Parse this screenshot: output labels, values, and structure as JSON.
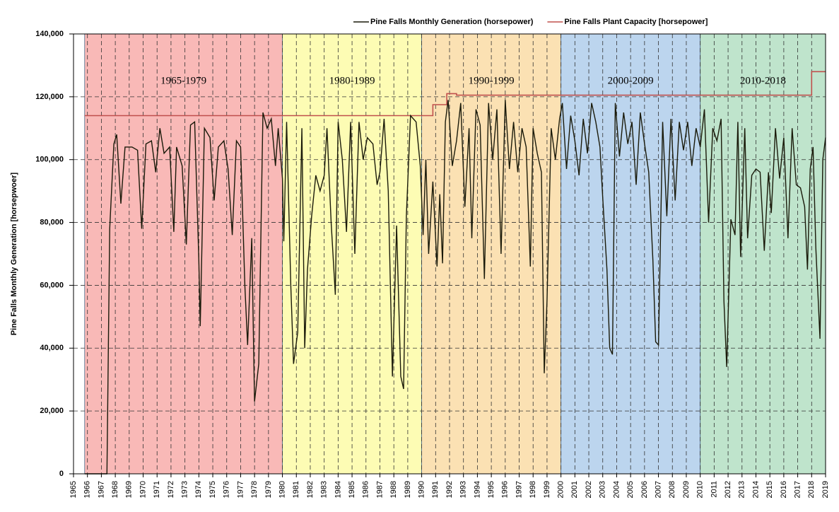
{
  "chart_data": {
    "type": "line",
    "y_label": "Pine Falls Monthly Generation [horsepwoer]",
    "xlim": [
      1965,
      2019
    ],
    "xticks": [
      1965,
      1966,
      1967,
      1968,
      1969,
      1970,
      1971,
      1972,
      1973,
      1974,
      1975,
      1976,
      1977,
      1978,
      1979,
      1980,
      1981,
      1982,
      1983,
      1984,
      1985,
      1986,
      1987,
      1988,
      1989,
      1990,
      1991,
      1992,
      1993,
      1994,
      1995,
      1996,
      1997,
      1998,
      1999,
      2000,
      2001,
      2002,
      2003,
      2004,
      2005,
      2006,
      2007,
      2008,
      2009,
      2010,
      2011,
      2012,
      2013,
      2014,
      2015,
      2016,
      2017,
      2018,
      2019
    ],
    "ylim": [
      0,
      140000
    ],
    "yticks": [
      0,
      {
        "value": 20000,
        "label": "20,000"
      },
      {
        "value": 40000,
        "label": "40,000"
      },
      {
        "value": 60000,
        "label": "60,000"
      },
      {
        "value": 80000,
        "label": "80,000"
      },
      {
        "value": 100000,
        "label": "100,000"
      },
      {
        "value": 120000,
        "label": "120,000"
      },
      {
        "value": 140000,
        "label": "140,000"
      }
    ],
    "grid": true,
    "legend": "top-right",
    "bands": [
      {
        "label": "1965-1979",
        "start": 1965.8,
        "end": 1980,
        "color": "#f9b9b7"
      },
      {
        "label": "1980-1989",
        "start": 1980,
        "end": 1990,
        "color": "#fdfcb4"
      },
      {
        "label": "1990-1999",
        "start": 1990,
        "end": 2000,
        "color": "#fbe1b3"
      },
      {
        "label": "2000-2009",
        "start": 2000,
        "end": 2010,
        "color": "#bcd5ee"
      },
      {
        "label": "2010-2018",
        "start": 2010,
        "end": 2019,
        "color": "#bfe4cc"
      }
    ],
    "series": [
      {
        "name": "Pine Falls Monthly Generation (horsepower)",
        "color": "#1a1a0a",
        "x": [
          1965.8,
          1967.3,
          1967.4,
          1967.6,
          1967.9,
          1968.1,
          1968.4,
          1968.7,
          1969.2,
          1969.6,
          1969.9,
          1970.2,
          1970.6,
          1970.9,
          1971.2,
          1971.5,
          1971.9,
          1972.2,
          1972.4,
          1972.8,
          1973.1,
          1973.4,
          1973.7,
          1974.0,
          1974.1,
          1974.4,
          1974.8,
          1975.1,
          1975.4,
          1975.8,
          1976.1,
          1976.4,
          1976.7,
          1977.0,
          1977.3,
          1977.5,
          1977.8,
          1978.0,
          1978.3,
          1978.6,
          1978.9,
          1979.2,
          1979.5,
          1979.7,
          1980.0,
          1980.1,
          1980.3,
          1980.6,
          1980.8,
          1981.1,
          1981.4,
          1981.6,
          1981.8,
          1982.1,
          1982.4,
          1982.7,
          1983.0,
          1983.2,
          1983.5,
          1983.8,
          1984.0,
          1984.3,
          1984.6,
          1984.9,
          1985.2,
          1985.5,
          1985.8,
          1986.1,
          1986.5,
          1986.8,
          1987.0,
          1987.3,
          1987.6,
          1987.9,
          1988.2,
          1988.5,
          1988.7,
          1988.9,
          1989.2,
          1989.6,
          1989.9,
          1990.1,
          1990.3,
          1990.5,
          1990.8,
          1991.1,
          1991.3,
          1991.5,
          1991.7,
          1991.9,
          1992.2,
          1992.5,
          1992.8,
          1993.1,
          1993.4,
          1993.6,
          1993.9,
          1994.2,
          1994.5,
          1994.8,
          1995.1,
          1995.4,
          1995.7,
          1996.0,
          1996.3,
          1996.6,
          1996.9,
          1997.2,
          1997.5,
          1997.8,
          1998.0,
          1998.3,
          1998.6,
          1998.8,
          1999.0,
          1999.3,
          1999.6,
          1999.9,
          2000.1,
          2000.4,
          2000.7,
          2001.0,
          2001.3,
          2001.6,
          2001.9,
          2002.2,
          2002.5,
          2002.8,
          2003.0,
          2003.3,
          2003.5,
          2003.7,
          2003.9,
          2004.2,
          2004.5,
          2004.8,
          2005.1,
          2005.4,
          2005.7,
          2006.0,
          2006.3,
          2006.6,
          2006.8,
          2007.0,
          2007.3,
          2007.6,
          2007.9,
          2008.2,
          2008.5,
          2008.8,
          2009.1,
          2009.4,
          2009.7,
          2010.0,
          2010.3,
          2010.6,
          2010.9,
          2011.2,
          2011.5,
          2011.7,
          2011.9,
          2012.2,
          2012.5,
          2012.7,
          2012.9,
          2013.2,
          2013.4,
          2013.7,
          2014.0,
          2014.3,
          2014.6,
          2014.9,
          2015.1,
          2015.4,
          2015.7,
          2016.0,
          2016.3,
          2016.6,
          2016.9,
          2017.2,
          2017.5,
          2017.7,
          2017.9,
          2018.1,
          2018.3,
          2018.6,
          2018.8,
          2019.0
        ],
        "values": [
          0,
          0,
          0,
          78000,
          105000,
          108000,
          86000,
          104000,
          104000,
          103000,
          78000,
          105000,
          106000,
          96000,
          110000,
          102000,
          104000,
          77000,
          104000,
          98000,
          73000,
          111000,
          112000,
          68000,
          47000,
          110000,
          107000,
          87000,
          104000,
          106000,
          97000,
          76000,
          106000,
          104000,
          60000,
          41000,
          75000,
          23000,
          35000,
          115000,
          110000,
          113000,
          98000,
          110000,
          94000,
          74000,
          112000,
          60000,
          35000,
          45000,
          110000,
          40000,
          65000,
          82000,
          95000,
          90000,
          95000,
          110000,
          80000,
          57000,
          112000,
          100000,
          77000,
          112000,
          70000,
          112000,
          100000,
          107000,
          105000,
          92000,
          96000,
          113000,
          90000,
          31000,
          79000,
          31000,
          27000,
          82000,
          114000,
          112000,
          98000,
          76000,
          100000,
          70000,
          93000,
          66000,
          89000,
          67000,
          112000,
          119000,
          98000,
          106000,
          118000,
          85000,
          110000,
          75000,
          116000,
          111000,
          62000,
          118000,
          100000,
          116000,
          70000,
          119000,
          97000,
          112000,
          96000,
          110000,
          104000,
          66000,
          110000,
          102000,
          96000,
          32000,
          55000,
          110000,
          100000,
          113000,
          118000,
          97000,
          114000,
          106000,
          95000,
          113000,
          102000,
          118000,
          112000,
          104000,
          88000,
          65000,
          40000,
          38000,
          118000,
          101000,
          115000,
          105000,
          112000,
          92000,
          115000,
          105000,
          96000,
          68000,
          42000,
          41000,
          112000,
          82000,
          113000,
          87000,
          112000,
          103000,
          112000,
          98000,
          110000,
          104000,
          116000,
          80000,
          110000,
          106000,
          113000,
          55000,
          34000,
          81000,
          76000,
          112000,
          69000,
          110000,
          75000,
          95000,
          97000,
          96000,
          71000,
          96000,
          83000,
          110000,
          94000,
          107000,
          75000,
          110000,
          92000,
          91000,
          85000,
          65000,
          97000,
          104000,
          72000,
          43000,
          100000,
          107000
        ]
      },
      {
        "name": "Pine Falls Plant Capacity [horsepower]",
        "color": "#c0504d",
        "x": [
          1965.8,
          1990.8,
          1990.8,
          1991.8,
          1991.8,
          1992.5,
          1992.5,
          2018,
          2018,
          2019
        ],
        "values": [
          114000,
          114000,
          117500,
          117500,
          121000,
          121000,
          120500,
          120500,
          128000,
          128000
        ]
      }
    ]
  }
}
